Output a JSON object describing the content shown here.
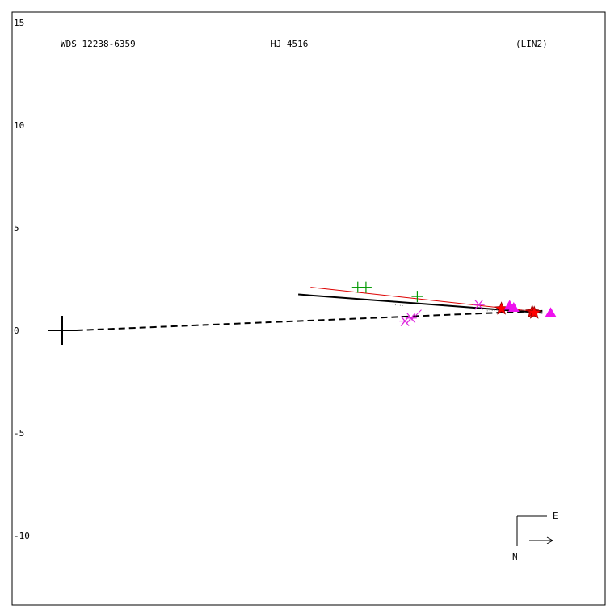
{
  "chart_data": {
    "type": "scatter",
    "header": {
      "left": "WDS 12238-6359",
      "center": "HJ 4516",
      "right": "(LIN2)"
    },
    "ylim": [
      -13.2,
      15.5
    ],
    "y_ticks": [
      {
        "value": 15,
        "label": "15"
      },
      {
        "value": 10,
        "label": "10"
      },
      {
        "value": 5,
        "label": "5"
      },
      {
        "value": 0,
        "label": "0"
      },
      {
        "value": -5,
        "label": "-5"
      },
      {
        "value": -10,
        "label": "-10"
      }
    ],
    "primary": {
      "x": 0,
      "y": 0
    },
    "orbit_line": [
      [
        0.7,
        0.0
      ],
      [
        23.4,
        0.95
      ]
    ],
    "solid_line": [
      [
        11.5,
        1.75
      ],
      [
        23.4,
        0.85
      ]
    ],
    "red_line": [
      [
        12.1,
        2.1
      ],
      [
        23.2,
        0.9
      ]
    ],
    "dotted_segments": [
      [
        [
          16.1,
          1.25
        ],
        [
          16.6,
          1.2
        ]
      ],
      [
        [
          20.7,
          0.95
        ],
        [
          21.4,
          1.0
        ]
      ],
      [
        [
          22.3,
          1.0
        ],
        [
          22.8,
          0.95
        ]
      ]
    ],
    "magenta_connector": [
      [
        17.0,
        0.5
      ],
      [
        17.5,
        1.0
      ]
    ],
    "series": [
      {
        "marker": "plus",
        "color": "#009900",
        "points": [
          [
            14.4,
            2.1
          ],
          [
            14.8,
            2.1
          ],
          [
            17.3,
            1.65
          ]
        ]
      },
      {
        "marker": "asterisk",
        "color": "#dd22dd",
        "points": [
          [
            16.7,
            0.45
          ],
          [
            17.0,
            0.6
          ],
          [
            20.3,
            1.25
          ]
        ]
      },
      {
        "marker": "star",
        "color": "#ff0000",
        "points": [
          [
            21.4,
            1.05
          ],
          [
            22.9,
            0.9
          ],
          [
            23.0,
            0.85
          ]
        ]
      },
      {
        "marker": "triangle",
        "color": "#ee11ee",
        "points": [
          [
            21.8,
            1.2
          ],
          [
            22.0,
            1.1
          ],
          [
            23.8,
            0.85
          ]
        ]
      }
    ],
    "compass": {
      "east": "E",
      "north": "N"
    },
    "colors": {
      "axis": "#000000",
      "red_line": "#dd0000",
      "dotted": "#888888"
    }
  }
}
